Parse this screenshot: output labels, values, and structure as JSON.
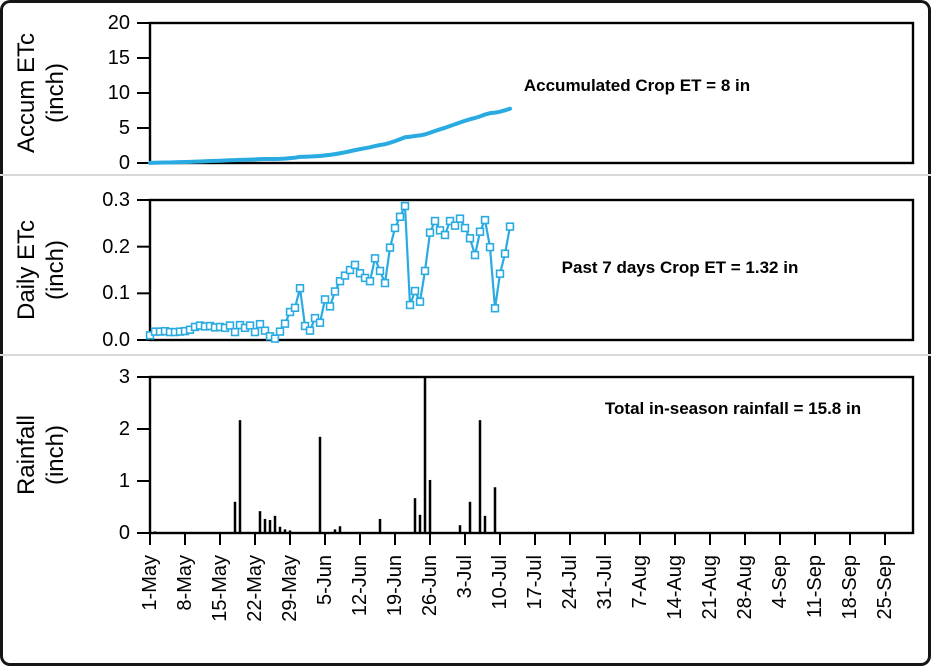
{
  "figure": {
    "accent_color": "#29abe2",
    "rain_bar_color": "#000000",
    "x_tick_labels": [
      "1-May",
      "8-May",
      "15-May",
      "22-May",
      "29-May",
      "5-Jun",
      "12-Jun",
      "19-Jun",
      "26-Jun",
      "3-Jul",
      "10-Jul",
      "17-Jul",
      "24-Jul",
      "31-Jul",
      "7-Aug",
      "14-Aug",
      "21-Aug",
      "28-Aug",
      "4-Sep",
      "11-Sep",
      "18-Sep",
      "25-Sep"
    ]
  },
  "panels": [
    {
      "y_title_line1": "Accum ETc",
      "y_title_line2": "(inch)",
      "y_tick_labels": [
        "0",
        "5",
        "10",
        "15",
        "20"
      ],
      "annotation": "Accumulated Crop ET = 8 in"
    },
    {
      "y_title_line1": "Daily ETc",
      "y_title_line2": "(inch)",
      "y_tick_labels": [
        "0.0",
        "0.1",
        "0.2",
        "0.3"
      ],
      "annotation": "Past 7 days Crop ET = 1.32 in"
    },
    {
      "y_title_line1": "Rainfall",
      "y_title_line2": "(inch)",
      "y_tick_labels": [
        "0",
        "1",
        "2",
        "3"
      ],
      "annotation": "Total in-season rainfall = 15.8 in"
    }
  ],
  "chart_data": [
    {
      "type": "line",
      "title": "Accumulated crop evapotranspiration",
      "ylabel": "Accum ETc (inch)",
      "ylim": [
        0,
        20
      ],
      "yticks": [
        0,
        5,
        10,
        15,
        20
      ],
      "x_start": "1-May",
      "x_interval": "daily",
      "x_axis_range_labels": [
        "1-May",
        "25-Sep"
      ],
      "grid": false,
      "legend": false,
      "annotation": "Accumulated Crop ET = 8 in",
      "color": "#29abe2",
      "values": [
        0.01,
        0.03,
        0.05,
        0.07,
        0.08,
        0.1,
        0.12,
        0.14,
        0.16,
        0.19,
        0.22,
        0.25,
        0.28,
        0.3,
        0.33,
        0.36,
        0.39,
        0.41,
        0.44,
        0.46,
        0.49,
        0.51,
        0.55,
        0.57,
        0.57,
        0.58,
        0.59,
        0.63,
        0.69,
        0.76,
        0.87,
        0.9,
        0.92,
        0.97,
        1.0,
        1.09,
        1.16,
        1.27,
        1.39,
        1.53,
        1.68,
        1.84,
        1.98,
        2.12,
        2.24,
        2.42,
        2.57,
        2.69,
        2.89,
        3.13,
        3.39,
        3.68,
        3.75,
        3.86,
        3.94,
        4.09,
        4.32,
        4.57,
        4.81,
        5.03,
        5.29,
        5.53,
        5.79,
        6.03,
        6.25,
        6.43,
        6.66,
        6.92,
        7.12,
        7.19,
        7.33,
        7.52,
        7.76
      ]
    },
    {
      "type": "line",
      "title": "Daily crop evapotranspiration",
      "ylabel": "Daily ETc (inch)",
      "ylim": [
        0,
        0.3
      ],
      "yticks": [
        0,
        0.1,
        0.2,
        0.3
      ],
      "x_start": "1-May",
      "x_interval": "daily",
      "marker": "open-square",
      "grid": false,
      "legend": false,
      "annotation": "Past 7 days Crop ET = 1.32 in",
      "color": "#29abe2",
      "values": [
        0.01,
        0.018,
        0.018,
        0.019,
        0.017,
        0.017,
        0.018,
        0.019,
        0.022,
        0.028,
        0.031,
        0.029,
        0.03,
        0.027,
        0.028,
        0.026,
        0.031,
        0.017,
        0.032,
        0.026,
        0.031,
        0.017,
        0.034,
        0.02,
        0.008,
        0.003,
        0.018,
        0.035,
        0.06,
        0.069,
        0.111,
        0.03,
        0.02,
        0.047,
        0.037,
        0.087,
        0.072,
        0.104,
        0.126,
        0.138,
        0.15,
        0.161,
        0.143,
        0.133,
        0.126,
        0.175,
        0.148,
        0.122,
        0.198,
        0.24,
        0.264,
        0.287,
        0.075,
        0.105,
        0.082,
        0.148,
        0.23,
        0.255,
        0.235,
        0.225,
        0.255,
        0.245,
        0.26,
        0.24,
        0.218,
        0.182,
        0.232,
        0.257,
        0.199,
        0.068,
        0.142,
        0.185,
        0.243
      ]
    },
    {
      "type": "bar",
      "title": "Rainfall",
      "ylabel": "Rainfall (inch)",
      "ylim": [
        0,
        3
      ],
      "yticks": [
        0,
        1,
        2,
        3
      ],
      "grid": false,
      "legend": false,
      "annotation": "Total in-season rainfall = 15.8 in",
      "color": "#000000",
      "bars": [
        {
          "date": "2-May",
          "day": 1,
          "value": 0.03
        },
        {
          "date": "18-May",
          "day": 17,
          "value": 0.6
        },
        {
          "date": "19-May",
          "day": 18,
          "value": 2.17
        },
        {
          "date": "23-May",
          "day": 22,
          "value": 0.42
        },
        {
          "date": "24-May",
          "day": 23,
          "value": 0.27
        },
        {
          "date": "25-May",
          "day": 24,
          "value": 0.25
        },
        {
          "date": "26-May",
          "day": 25,
          "value": 0.33
        },
        {
          "date": "27-May",
          "day": 26,
          "value": 0.12
        },
        {
          "date": "28-May",
          "day": 27,
          "value": 0.07
        },
        {
          "date": "29-May",
          "day": 28,
          "value": 0.05
        },
        {
          "date": "4-Jun",
          "day": 34,
          "value": 1.85
        },
        {
          "date": "7-Jun",
          "day": 37,
          "value": 0.07
        },
        {
          "date": "8-Jun",
          "day": 38,
          "value": 0.13
        },
        {
          "date": "16-Jun",
          "day": 46,
          "value": 0.27
        },
        {
          "date": "23-Jun",
          "day": 53,
          "value": 0.67
        },
        {
          "date": "24-Jun",
          "day": 54,
          "value": 0.35
        },
        {
          "date": "25-Jun",
          "day": 55,
          "value": 3.0
        },
        {
          "date": "26-Jun",
          "day": 56,
          "value": 1.02
        },
        {
          "date": "2-Jul",
          "day": 62,
          "value": 0.15
        },
        {
          "date": "4-Jul",
          "day": 64,
          "value": 0.6
        },
        {
          "date": "6-Jul",
          "day": 66,
          "value": 2.17
        },
        {
          "date": "7-Jul",
          "day": 67,
          "value": 0.33
        },
        {
          "date": "9-Jul",
          "day": 69,
          "value": 0.88
        }
      ]
    }
  ]
}
